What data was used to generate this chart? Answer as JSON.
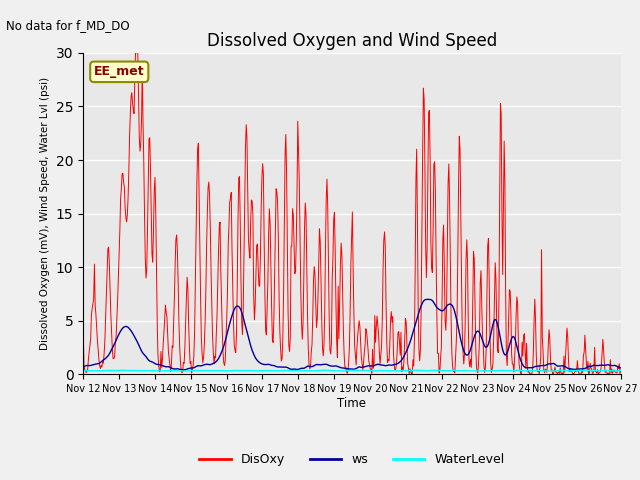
{
  "title": "Dissolved Oxygen and Wind Speed",
  "xlabel": "Time",
  "ylabel": "Dissolved Oxygen (mV), Wind Speed, Water Lvl (psi)",
  "annotation_text": "No data for f_MD_DO",
  "legend_label_box": "EE_met",
  "ylim": [
    0,
    30
  ],
  "legend_labels": [
    "DisOxy",
    "ws",
    "WaterLevel"
  ],
  "background_color": "#f0f0f0",
  "plot_bg_color": "#e8e8e8",
  "x_tick_labels": [
    "Nov 12",
    "Nov 13",
    "Nov 14",
    "Nov 15",
    "Nov 16",
    "Nov 17",
    "Nov 18",
    "Nov 19",
    "Nov 20",
    "Nov 21",
    "Nov 22",
    "Nov 23",
    "Nov 24",
    "Nov 25",
    "Nov 26",
    "Nov 27"
  ],
  "num_days": 15,
  "seed": 42
}
